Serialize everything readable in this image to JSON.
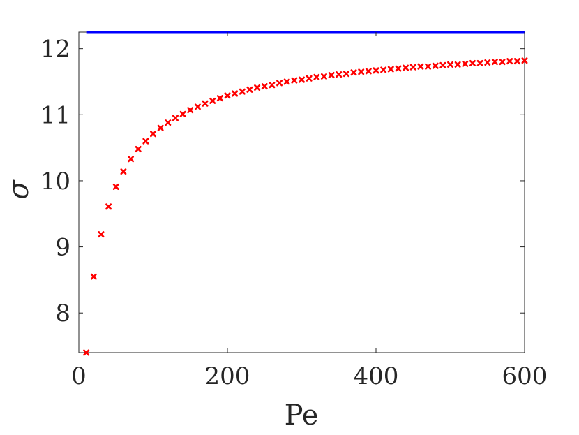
{
  "chart_data": {
    "type": "scatter",
    "title": "",
    "xlabel": "Pe",
    "ylabel": "σ",
    "xlim": [
      0,
      600
    ],
    "ylim": [
      7.4,
      12.25
    ],
    "xticks": [
      0,
      200,
      400,
      600
    ],
    "yticks": [
      8,
      9,
      10,
      11,
      12
    ],
    "grid": false,
    "legend": "none",
    "series": [
      {
        "kind": "line",
        "color": "#0000ff",
        "x": [
          10,
          600
        ],
        "y": [
          12.25,
          12.25
        ]
      },
      {
        "kind": "scatter",
        "marker": "x",
        "color": "#ff0000",
        "x": [
          10,
          20,
          30,
          40,
          50,
          60,
          70,
          80,
          90,
          100,
          110,
          120,
          130,
          140,
          150,
          160,
          170,
          180,
          190,
          200,
          210,
          220,
          230,
          240,
          250,
          260,
          270,
          280,
          290,
          300,
          310,
          320,
          330,
          340,
          350,
          360,
          370,
          380,
          390,
          400,
          410,
          420,
          430,
          440,
          450,
          460,
          470,
          480,
          490,
          500,
          510,
          520,
          530,
          540,
          550,
          560,
          570,
          580,
          590,
          600
        ],
        "y": [
          7.4,
          8.55,
          9.19,
          9.61,
          9.91,
          10.14,
          10.33,
          10.48,
          10.6,
          10.71,
          10.8,
          10.88,
          10.95,
          11.01,
          11.07,
          11.12,
          11.17,
          11.21,
          11.25,
          11.29,
          11.32,
          11.35,
          11.38,
          11.41,
          11.43,
          11.45,
          11.48,
          11.5,
          11.52,
          11.53,
          11.55,
          11.57,
          11.58,
          11.6,
          11.61,
          11.62,
          11.64,
          11.65,
          11.66,
          11.67,
          11.68,
          11.69,
          11.7,
          11.71,
          11.72,
          11.73,
          11.73,
          11.74,
          11.75,
          11.76,
          11.76,
          11.77,
          11.78,
          11.78,
          11.79,
          11.8,
          11.8,
          11.81,
          11.81,
          11.82
        ]
      }
    ]
  }
}
